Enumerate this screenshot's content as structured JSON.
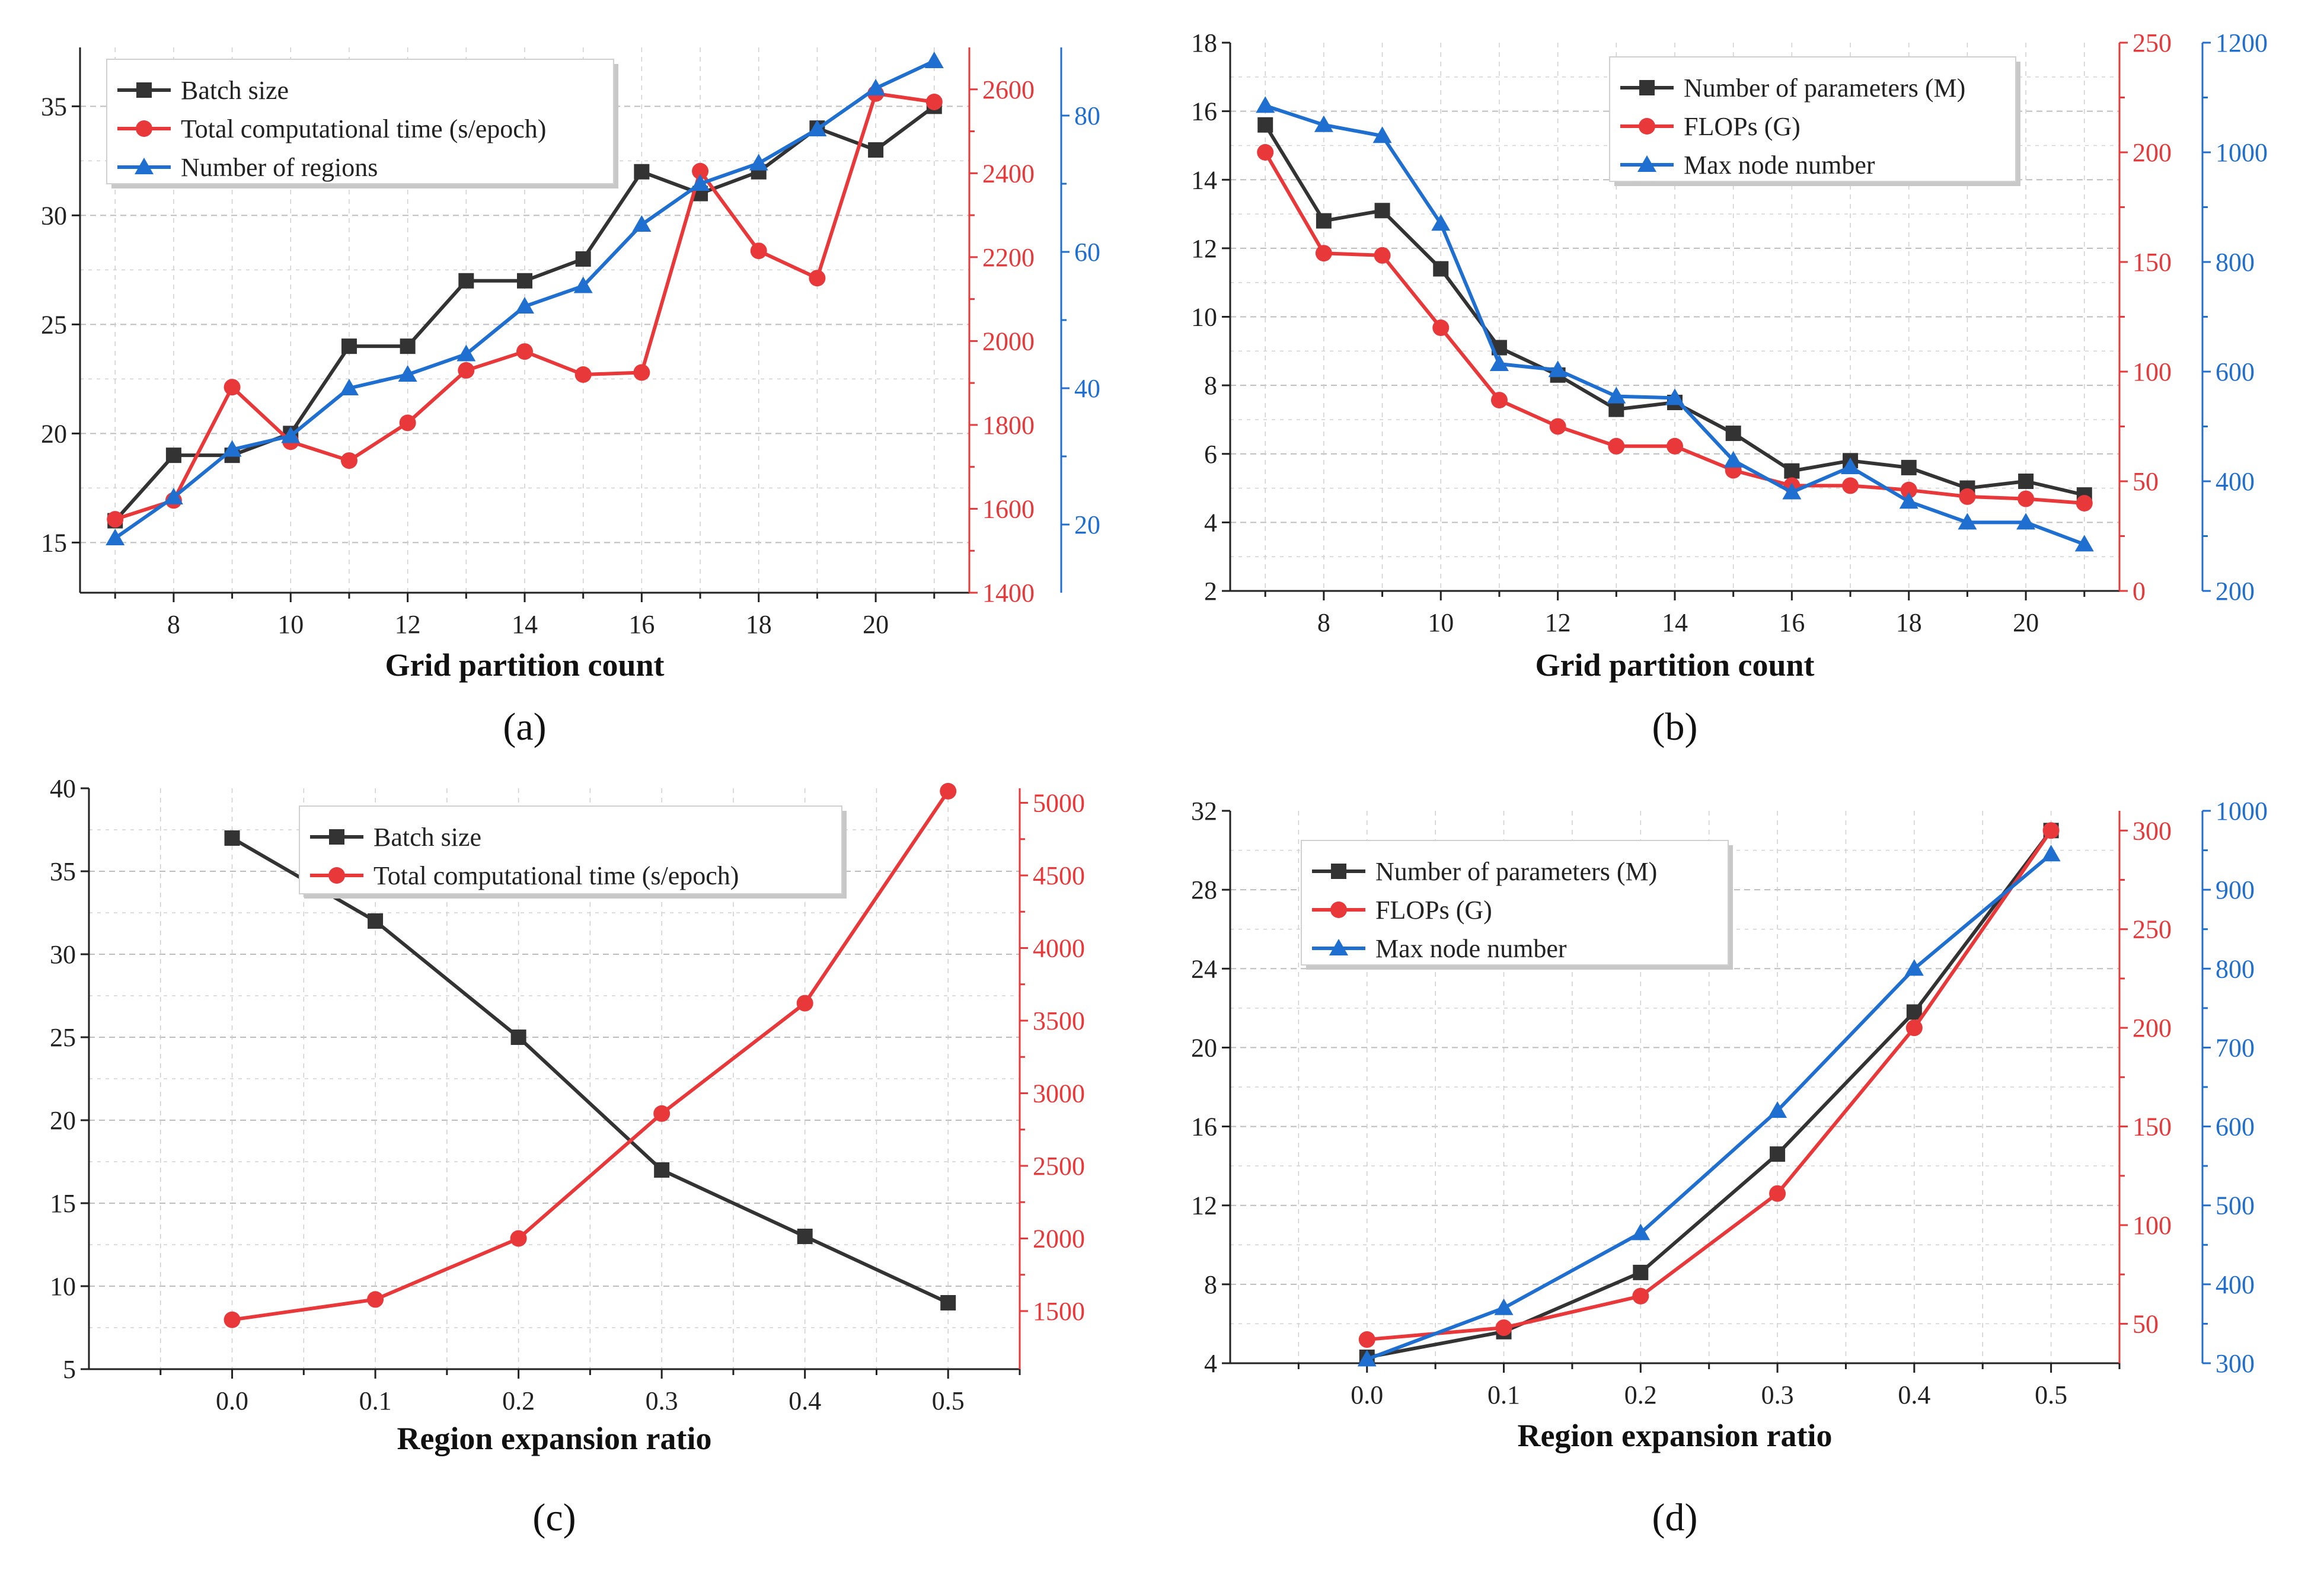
{
  "colors": {
    "black": "#333333",
    "red": "#e8383a",
    "blue": "#1f6fd1"
  },
  "chart_data": [
    {
      "id": "a",
      "type": "line",
      "panel_label": "(a)",
      "xlabel": "Grid partition count",
      "x": [
        7,
        8,
        9,
        10,
        11,
        12,
        13,
        14,
        15,
        16,
        17,
        18,
        19,
        20,
        21
      ],
      "x_range": [
        6.4,
        21.6
      ],
      "x_ticks": [
        8,
        10,
        12,
        14,
        16,
        18,
        20
      ],
      "axes": [
        {
          "side": "left",
          "color": "black",
          "range": [
            12.7,
            37.7
          ],
          "ticks": [
            15,
            20,
            25,
            30,
            35
          ]
        },
        {
          "side": "right1",
          "color": "red",
          "range": [
            1400,
            2700
          ],
          "ticks": [
            1400,
            1600,
            1800,
            2000,
            2200,
            2400,
            2600
          ]
        },
        {
          "side": "right2",
          "color": "blue",
          "range": [
            10,
            90
          ],
          "ticks": [
            20,
            40,
            60,
            80
          ]
        }
      ],
      "series": [
        {
          "name": "Batch size",
          "axis": 0,
          "color": "black",
          "marker": "square",
          "values": [
            16,
            19,
            19,
            20,
            24,
            24,
            27,
            27,
            28,
            32,
            31,
            32,
            34,
            33,
            35
          ]
        },
        {
          "name": "Total computational time (s/epoch)",
          "axis": 1,
          "color": "red",
          "marker": "circle",
          "values": [
            1575,
            1620,
            1890,
            1760,
            1715,
            1805,
            1930,
            1975,
            1920,
            1925,
            2405,
            2215,
            2150,
            2590,
            2570
          ]
        },
        {
          "name": "Number of regions",
          "axis": 2,
          "color": "blue",
          "marker": "triangle",
          "values": [
            18,
            24,
            31,
            33,
            40,
            42,
            45,
            52,
            55,
            64,
            70,
            73,
            78,
            84,
            88
          ]
        }
      ],
      "legend": "top-left"
    },
    {
      "id": "b",
      "type": "line",
      "panel_label": "(b)",
      "xlabel": "Grid partition count",
      "x": [
        7,
        8,
        9,
        10,
        11,
        12,
        13,
        14,
        15,
        16,
        17,
        18,
        19,
        20,
        21
      ],
      "x_range": [
        6.4,
        21.6
      ],
      "x_ticks": [
        8,
        10,
        12,
        14,
        16,
        18,
        20
      ],
      "axes": [
        {
          "side": "left",
          "color": "black",
          "range": [
            2,
            18
          ],
          "ticks": [
            2,
            4,
            6,
            8,
            10,
            12,
            14,
            16,
            18
          ]
        },
        {
          "side": "right1",
          "color": "red",
          "range": [
            0,
            250
          ],
          "ticks": [
            0,
            50,
            100,
            150,
            200,
            250
          ]
        },
        {
          "side": "right2",
          "color": "blue",
          "range": [
            200,
            1200
          ],
          "ticks": [
            200,
            400,
            600,
            800,
            1000,
            1200
          ]
        }
      ],
      "series": [
        {
          "name": "Number of parameters (M)",
          "axis": 0,
          "color": "black",
          "marker": "square",
          "values": [
            15.6,
            12.8,
            13.1,
            11.4,
            9.1,
            8.3,
            7.3,
            7.5,
            6.6,
            5.5,
            5.8,
            5.6,
            5.0,
            5.2,
            4.8
          ]
        },
        {
          "name": "FLOPs (G)",
          "axis": 1,
          "color": "red",
          "marker": "circle",
          "values": [
            200,
            154,
            153,
            120,
            87,
            75,
            66,
            66,
            55,
            48,
            48,
            46,
            43,
            42,
            40
          ]
        },
        {
          "name": "Max node number",
          "axis": 2,
          "color": "blue",
          "marker": "triangle",
          "values": [
            1085,
            1050,
            1030,
            870,
            614,
            603,
            555,
            552,
            438,
            380,
            426,
            363,
            325,
            325,
            285
          ]
        }
      ],
      "legend": "top-right"
    },
    {
      "id": "c",
      "type": "line",
      "panel_label": "(c)",
      "xlabel": "Region expansion ratio",
      "x": [
        0.0,
        0.1,
        0.2,
        0.3,
        0.4,
        0.5
      ],
      "x_range": [
        -0.1,
        0.55
      ],
      "x_ticks": [
        0.0,
        0.1,
        0.2,
        0.3,
        0.4,
        0.5
      ],
      "x_tick_labels": [
        "0.0",
        "0.1",
        "0.2",
        "0.3",
        "0.4",
        "0.5"
      ],
      "axes": [
        {
          "side": "left",
          "color": "black",
          "range": [
            5,
            40
          ],
          "ticks": [
            5,
            10,
            15,
            20,
            25,
            30,
            35,
            40
          ]
        },
        {
          "side": "right1",
          "color": "red",
          "range": [
            1100,
            5100
          ],
          "ticks": [
            1500,
            2000,
            2500,
            3000,
            3500,
            4000,
            4500,
            5000
          ]
        }
      ],
      "series": [
        {
          "name": "Batch size",
          "axis": 0,
          "color": "black",
          "marker": "square",
          "values": [
            37,
            32,
            25,
            17,
            13,
            9
          ]
        },
        {
          "name": "Total computational time (s/epoch)",
          "axis": 1,
          "color": "red",
          "marker": "circle",
          "values": [
            1440,
            1580,
            2000,
            2860,
            3620,
            5080
          ]
        }
      ],
      "legend": "top-center"
    },
    {
      "id": "d",
      "type": "line",
      "panel_label": "(d)",
      "xlabel": "Region expansion ratio",
      "x": [
        0.0,
        0.1,
        0.2,
        0.3,
        0.4,
        0.5
      ],
      "x_range": [
        -0.1,
        0.55
      ],
      "x_ticks": [
        0.0,
        0.1,
        0.2,
        0.3,
        0.4,
        0.5
      ],
      "x_tick_labels": [
        "0.0",
        "0.1",
        "0.2",
        "0.3",
        "0.4",
        "0.5"
      ],
      "axes": [
        {
          "side": "left",
          "color": "black",
          "range": [
            4,
            32
          ],
          "ticks": [
            4,
            8,
            12,
            16,
            20,
            24,
            28,
            32
          ]
        },
        {
          "side": "right1",
          "color": "red",
          "range": [
            30,
            310
          ],
          "ticks": [
            50,
            100,
            150,
            200,
            250,
            300
          ]
        },
        {
          "side": "right2",
          "color": "blue",
          "range": [
            300,
            1000
          ],
          "ticks": [
            300,
            400,
            500,
            600,
            700,
            800,
            900,
            1000
          ]
        }
      ],
      "series": [
        {
          "name": "Number of  parameters (M)",
          "axis": 0,
          "color": "black",
          "marker": "square",
          "values": [
            4.3,
            5.6,
            8.6,
            14.6,
            21.8,
            31.0
          ]
        },
        {
          "name": "FLOPs (G)",
          "axis": 1,
          "color": "red",
          "marker": "circle",
          "values": [
            42,
            48,
            64,
            116,
            200,
            300
          ]
        },
        {
          "name": "Max node number",
          "axis": 2,
          "color": "blue",
          "marker": "triangle",
          "values": [
            305,
            370,
            465,
            620,
            800,
            945
          ]
        }
      ],
      "legend": "top-center"
    }
  ]
}
